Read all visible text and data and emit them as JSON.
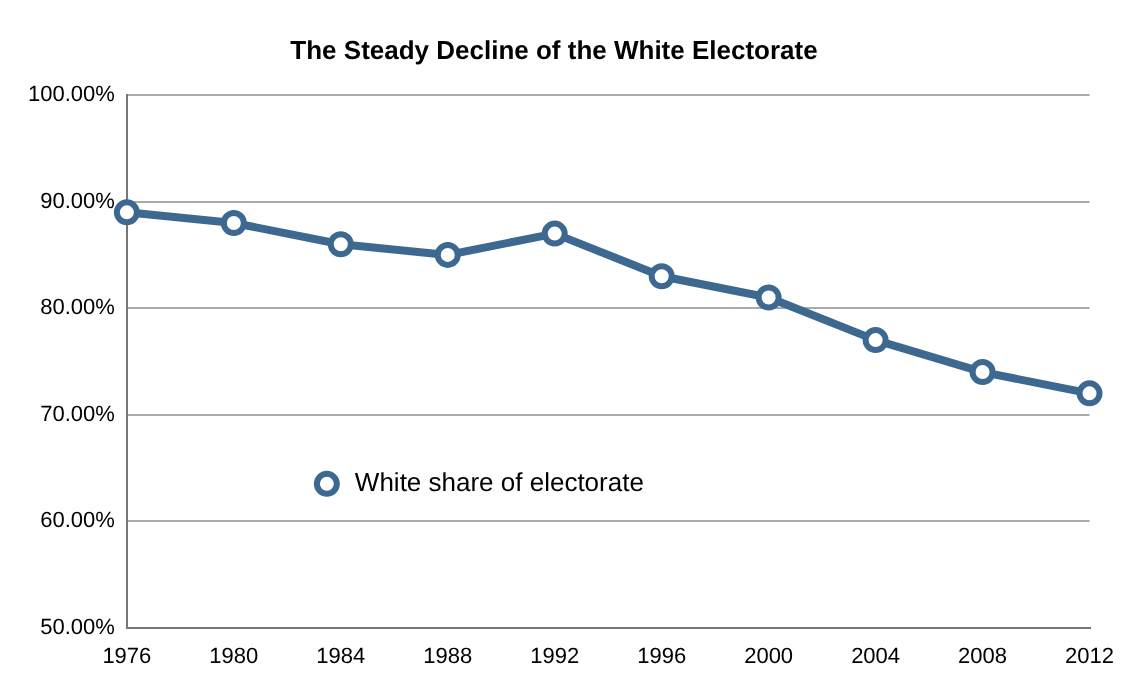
{
  "chart_data": {
    "type": "line",
    "title": "The Steady Decline of the White Electorate",
    "categories": [
      "1976",
      "1980",
      "1984",
      "1988",
      "1992",
      "1996",
      "2000",
      "2004",
      "2008",
      "2012"
    ],
    "series": [
      {
        "name": "White share of electorate",
        "color": "#3d6990",
        "values": [
          89,
          88,
          86,
          85,
          87,
          83,
          81,
          77,
          74,
          72
        ]
      }
    ],
    "ylim": [
      50,
      100
    ],
    "yticks": [
      {
        "value": 50,
        "label": "50.00%"
      },
      {
        "value": 60,
        "label": "60.00%"
      },
      {
        "value": 70,
        "label": "70.00%"
      },
      {
        "value": 80,
        "label": "80.00%"
      },
      {
        "value": 90,
        "label": "90.00%"
      },
      {
        "value": 100,
        "label": "100.00%"
      }
    ],
    "grid": "y",
    "legend": "bottom left",
    "marker": "circle",
    "line_style": "solid"
  }
}
